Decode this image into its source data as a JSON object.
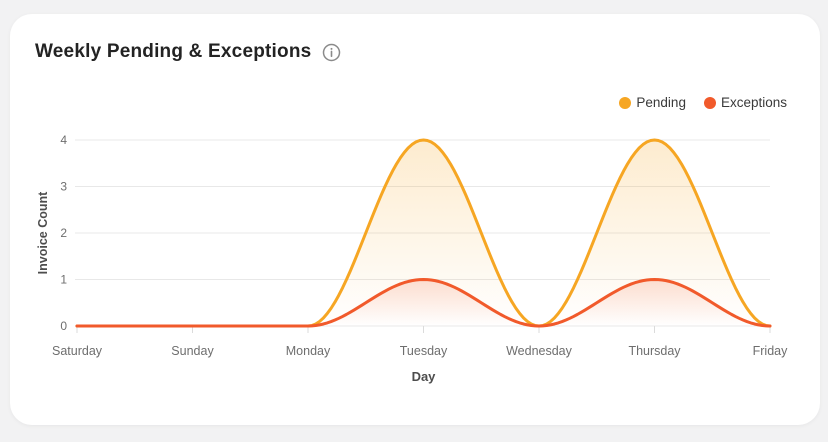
{
  "colors": {
    "page_background": "#F2F2F3",
    "card_background": "#FFFFFF",
    "title_text": "#232323",
    "grid_line": "#E8E8E8",
    "axis_tick": "#DBDBDB",
    "tick_label_text": "#6E6E6E",
    "axis_title_text": "#4D4D4D",
    "info_icon": "#8A8A8A"
  },
  "header": {
    "title": "Weekly Pending & Exceptions"
  },
  "legend": [
    {
      "label": "Pending",
      "color": "#F6A623"
    },
    {
      "label": "Exceptions",
      "color": "#F15A2B"
    }
  ],
  "chart_data": {
    "type": "area",
    "categories": [
      "Saturday",
      "Sunday",
      "Monday",
      "Tuesday",
      "Wednesday",
      "Thursday",
      "Friday"
    ],
    "series": [
      {
        "name": "Pending",
        "color": "#F6A623",
        "fill_opacity": 0.22,
        "values": [
          0,
          0,
          0,
          4,
          0,
          4,
          0
        ]
      },
      {
        "name": "Exceptions",
        "color": "#F15A2B",
        "fill_opacity": 0.18,
        "values": [
          0,
          0,
          0,
          1,
          0,
          1,
          0
        ]
      }
    ],
    "title": "Weekly Pending & Exceptions",
    "xlabel": "Day",
    "ylabel": "Invoice Count",
    "ylim": [
      0,
      4
    ],
    "yticks": [
      0,
      1,
      2,
      3,
      4
    ],
    "grid": true,
    "smooth": true,
    "fill": "gradient-fade",
    "legend_position": "top-right"
  }
}
